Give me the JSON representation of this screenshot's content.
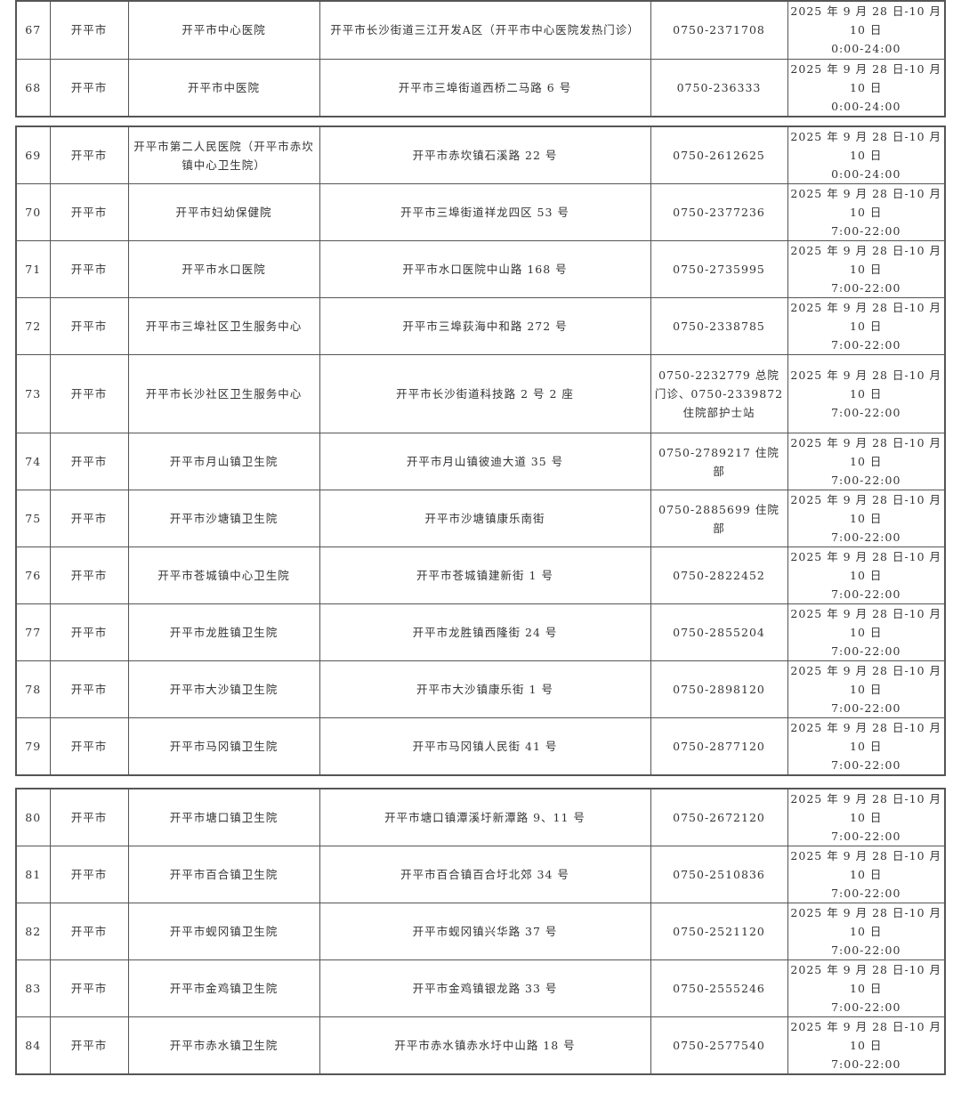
{
  "segments": [
    {
      "rows": [
        {
          "no": "67",
          "city": "开平市",
          "name": "开平市中心医院",
          "address": "开平市长沙街道三江开发A区（开平市中心医院发热门诊）",
          "phone": "0750-2371708",
          "date": "2025 年 9 月 28 日-10 月 10 日",
          "hours": "0:00-24:00"
        },
        {
          "no": "68",
          "city": "开平市",
          "name": "开平市中医院",
          "address": "开平市三埠街道西桥二马路 6 号",
          "phone": "0750-236333",
          "date": "2025 年 9 月 28 日-10 月 10 日",
          "hours": "0:00-24:00"
        }
      ]
    },
    {
      "rows": [
        {
          "no": "69",
          "city": "开平市",
          "name": "开平市第二人民医院（开平市赤坎镇中心卫生院）",
          "address": "开平市赤坎镇石溪路 22 号",
          "phone": "0750-2612625",
          "date": "2025 年 9 月 28 日-10 月 10 日",
          "hours": "0:00-24:00"
        },
        {
          "no": "70",
          "city": "开平市",
          "name": "开平市妇幼保健院",
          "address": "开平市三埠街道祥龙四区 53 号",
          "phone": "0750-2377236",
          "date": "2025 年 9 月 28 日-10 月 10 日",
          "hours": "7:00-22:00"
        },
        {
          "no": "71",
          "city": "开平市",
          "name": "开平市水口医院",
          "address": "开平市水口医院中山路 168 号",
          "phone": "0750-2735995",
          "date": "2025 年 9 月 28 日-10 月 10 日",
          "hours": "7:00-22:00"
        },
        {
          "no": "72",
          "city": "开平市",
          "name": "开平市三埠社区卫生服务中心",
          "address": "开平市三埠荻海中和路 272 号",
          "phone": "0750-2338785",
          "date": "2025 年 9 月 28 日-10 月 10 日",
          "hours": "7:00-22:00"
        },
        {
          "no": "73",
          "city": "开平市",
          "name": "开平市长沙社区卫生服务中心",
          "address": "开平市长沙街道科技路 2 号 2 座",
          "phone": "0750-2232779 总院门诊、0750-2339872 住院部护士站",
          "date": "2025 年 9 月 28 日-10 月 10 日",
          "hours": "7:00-22:00"
        },
        {
          "no": "74",
          "city": "开平市",
          "name": "开平市月山镇卫生院",
          "address": "开平市月山镇彼迪大道 35 号",
          "phone": "0750-2789217 住院部",
          "date": "2025 年 9 月 28 日-10 月 10 日",
          "hours": "7:00-22:00"
        },
        {
          "no": "75",
          "city": "开平市",
          "name": "开平市沙塘镇卫生院",
          "address": "开平市沙塘镇康乐南街",
          "phone": "0750-2885699 住院部",
          "date": "2025 年 9 月 28 日-10 月 10 日",
          "hours": "7:00-22:00"
        },
        {
          "no": "76",
          "city": "开平市",
          "name": "开平市苍城镇中心卫生院",
          "address": "开平市苍城镇建新街 1 号",
          "phone": "0750-2822452",
          "date": "2025 年 9 月 28 日-10 月 10 日",
          "hours": "7:00-22:00"
        },
        {
          "no": "77",
          "city": "开平市",
          "name": "开平市龙胜镇卫生院",
          "address": "开平市龙胜镇西隆街 24 号",
          "phone": "0750-2855204",
          "date": "2025 年 9 月 28 日-10 月 10 日",
          "hours": "7:00-22:00"
        },
        {
          "no": "78",
          "city": "开平市",
          "name": "开平市大沙镇卫生院",
          "address": "开平市大沙镇康乐街 1 号",
          "phone": "0750-2898120",
          "date": "2025 年 9 月 28 日-10 月 10 日",
          "hours": "7:00-22:00"
        },
        {
          "no": "79",
          "city": "开平市",
          "name": "开平市马冈镇卫生院",
          "address": "开平市马冈镇人民街 41 号",
          "phone": "0750-2877120",
          "date": "2025 年 9 月 28 日-10 月 10 日",
          "hours": "7:00-22:00"
        }
      ]
    },
    {
      "rows": [
        {
          "no": "80",
          "city": "开平市",
          "name": "开平市塘口镇卫生院",
          "address": "开平市塘口镇潭溪圩新潭路 9、11 号",
          "phone": "0750-2672120",
          "date": "2025 年 9 月 28 日-10 月 10 日",
          "hours": "7:00-22:00"
        },
        {
          "no": "81",
          "city": "开平市",
          "name": "开平市百合镇卫生院",
          "address": "开平市百合镇百合圩北郊 34 号",
          "phone": "0750-2510836",
          "date": "2025 年 9 月 28 日-10 月 10 日",
          "hours": "7:00-22:00"
        },
        {
          "no": "82",
          "city": "开平市",
          "name": "开平市蚬冈镇卫生院",
          "address": "开平市蚬冈镇兴华路 37 号",
          "phone": "0750-2521120",
          "date": "2025 年 9 月 28 日-10 月 10 日",
          "hours": "7:00-22:00"
        },
        {
          "no": "83",
          "city": "开平市",
          "name": "开平市金鸡镇卫生院",
          "address": "开平市金鸡镇银龙路 33 号",
          "phone": "0750-2555246",
          "date": "2025 年 9 月 28 日-10 月 10 日",
          "hours": "7:00-22:00"
        },
        {
          "no": "84",
          "city": "开平市",
          "name": "开平市赤水镇卫生院",
          "address": "开平市赤水镇赤水圩中山路 18 号",
          "phone": "0750-2577540",
          "date": "2025 年 9 月 28 日-10 月 10 日",
          "hours": "7:00-22:00"
        }
      ]
    }
  ]
}
